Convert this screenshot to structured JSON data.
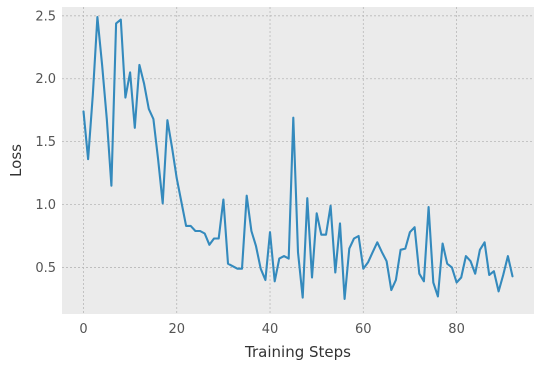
{
  "chart_data": {
    "type": "line",
    "title": "",
    "xlabel": "Training Steps",
    "ylabel": "Loss",
    "xlim": [
      -4.6,
      96.6
    ],
    "ylim": [
      0.13,
      2.57
    ],
    "grid": true,
    "background_color": "#ebebeb",
    "grid_color": "#b8b8b8",
    "x_ticks": [
      0,
      20,
      40,
      60,
      80
    ],
    "y_ticks": [
      0.5,
      1.0,
      1.5,
      2.0,
      2.5
    ],
    "x_tick_labels": [
      "0",
      "20",
      "40",
      "60",
      "80"
    ],
    "y_tick_labels": [
      "0.5",
      "1.0",
      "1.5",
      "2.0",
      "2.5"
    ],
    "series": [
      {
        "color": "#348abd",
        "x": [
          0,
          1,
          2,
          3,
          4,
          5,
          6,
          7,
          8,
          9,
          10,
          11,
          12,
          13,
          14,
          15,
          16,
          17,
          18,
          19,
          20,
          21,
          22,
          23,
          24,
          25,
          26,
          27,
          28,
          29,
          30,
          31,
          32,
          33,
          34,
          35,
          36,
          37,
          38,
          39,
          40,
          41,
          42,
          43,
          44,
          45,
          46,
          47,
          48,
          49,
          50,
          51,
          52,
          53,
          54,
          55,
          56,
          57,
          58,
          59,
          60,
          61,
          62,
          63,
          64,
          65,
          66,
          67,
          68,
          69,
          70,
          71,
          72,
          73,
          74,
          75,
          76,
          77,
          78,
          79,
          80,
          81,
          82,
          83,
          84,
          85,
          86,
          87,
          88,
          89,
          90,
          91,
          92
        ],
        "y": [
          1.74,
          1.36,
          1.87,
          2.49,
          2.11,
          1.68,
          1.15,
          2.44,
          2.47,
          1.85,
          2.05,
          1.61,
          2.11,
          1.96,
          1.76,
          1.68,
          1.36,
          1.01,
          1.67,
          1.45,
          1.21,
          1.02,
          0.83,
          0.83,
          0.79,
          0.79,
          0.77,
          0.68,
          0.73,
          0.73,
          1.04,
          0.53,
          0.51,
          0.49,
          0.49,
          1.07,
          0.79,
          0.67,
          0.49,
          0.4,
          0.78,
          0.39,
          0.57,
          0.59,
          0.57,
          1.69,
          0.62,
          0.26,
          1.05,
          0.42,
          0.93,
          0.76,
          0.76,
          0.99,
          0.46,
          0.85,
          0.25,
          0.65,
          0.73,
          0.75,
          0.49,
          0.54,
          0.62,
          0.7,
          0.62,
          0.55,
          0.32,
          0.4,
          0.64,
          0.65,
          0.78,
          0.82,
          0.45,
          0.39,
          0.98,
          0.38,
          0.27,
          0.69,
          0.53,
          0.5,
          0.38,
          0.42,
          0.59,
          0.55,
          0.45,
          0.64,
          0.7,
          0.44,
          0.47,
          0.31,
          0.44,
          0.59,
          0.43
        ]
      }
    ]
  }
}
